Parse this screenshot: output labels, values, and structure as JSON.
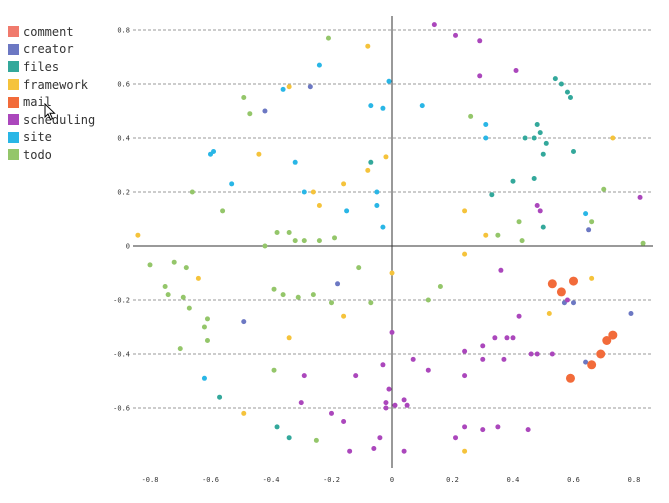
{
  "chart_data": {
    "type": "scatter",
    "title": "",
    "xlabel": "",
    "ylabel": "",
    "xlim": [
      -0.85,
      0.85
    ],
    "ylim": [
      -0.8,
      0.8
    ],
    "x_ticks": [
      -0.8,
      -0.6,
      -0.4,
      -0.2,
      0,
      0.2,
      0.4,
      0.6,
      0.8
    ],
    "x_tick_labels": [
      "-0.8",
      "-0.6",
      "-0.4",
      "-0.2",
      "0",
      "0.2",
      "0.4",
      "0.6",
      "0.8"
    ],
    "y_ticks": [
      0.8,
      0.6,
      0.4,
      0.2,
      0,
      -0.2,
      -0.4,
      -0.6
    ],
    "y_tick_labels": [
      "0.8",
      "0.6",
      "0.4",
      "0.2",
      "0",
      "-0.2",
      "-0.4",
      "-0.6"
    ],
    "grid": "horizontal-dashed",
    "legend_position": "top-left",
    "series": [
      {
        "name": "comment",
        "color": "#f07a6d",
        "points": []
      },
      {
        "name": "creator",
        "color": "#6c78c3",
        "points": [
          [
            -0.27,
            0.59
          ],
          [
            -0.42,
            0.5
          ],
          [
            -0.49,
            -0.28
          ],
          [
            -0.18,
            -0.14
          ],
          [
            0.65,
            0.06
          ],
          [
            0.57,
            -0.21
          ],
          [
            0.6,
            -0.21
          ],
          [
            0.79,
            -0.25
          ],
          [
            0.64,
            -0.43
          ]
        ]
      },
      {
        "name": "files",
        "color": "#33a89b",
        "points": [
          [
            0.54,
            0.62
          ],
          [
            0.56,
            0.6
          ],
          [
            0.58,
            0.57
          ],
          [
            0.59,
            0.55
          ],
          [
            0.48,
            0.45
          ],
          [
            0.49,
            0.42
          ],
          [
            0.47,
            0.4
          ],
          [
            0.44,
            0.4
          ],
          [
            0.51,
            0.38
          ],
          [
            0.5,
            0.34
          ],
          [
            0.6,
            0.35
          ],
          [
            0.47,
            0.25
          ],
          [
            0.4,
            0.24
          ],
          [
            0.33,
            0.19
          ],
          [
            0.5,
            0.07
          ],
          [
            -0.07,
            0.31
          ],
          [
            -0.57,
            -0.56
          ],
          [
            -0.38,
            -0.67
          ],
          [
            -0.34,
            -0.71
          ]
        ]
      },
      {
        "name": "framework",
        "color": "#f5c33b",
        "points": [
          [
            -0.08,
            0.74
          ],
          [
            -0.34,
            0.59
          ],
          [
            -0.44,
            0.34
          ],
          [
            -0.02,
            0.33
          ],
          [
            0.73,
            0.4
          ],
          [
            -0.08,
            0.28
          ],
          [
            -0.16,
            0.23
          ],
          [
            -0.26,
            0.2
          ],
          [
            -0.24,
            0.15
          ],
          [
            0.24,
            0.13
          ],
          [
            0.31,
            0.04
          ],
          [
            -0.84,
            0.04
          ],
          [
            -0.64,
            -0.12
          ],
          [
            0.24,
            -0.03
          ],
          [
            0.0,
            -0.1
          ],
          [
            0.66,
            -0.12
          ],
          [
            -0.16,
            -0.26
          ],
          [
            0.52,
            -0.25
          ],
          [
            -0.34,
            -0.34
          ],
          [
            -0.49,
            -0.62
          ],
          [
            0.24,
            -0.76
          ]
        ]
      },
      {
        "name": "mail",
        "color": "#f26b3a",
        "points": [
          [
            0.53,
            -0.14
          ],
          [
            0.56,
            -0.17
          ],
          [
            0.6,
            -0.13
          ],
          [
            0.73,
            -0.33
          ],
          [
            0.71,
            -0.35
          ],
          [
            0.69,
            -0.4
          ],
          [
            0.66,
            -0.44
          ],
          [
            0.59,
            -0.49
          ]
        ]
      },
      {
        "name": "scheduling",
        "color": "#ab47bc",
        "points": [
          [
            0.14,
            0.82
          ],
          [
            0.21,
            0.78
          ],
          [
            0.29,
            0.76
          ],
          [
            0.41,
            0.65
          ],
          [
            0.29,
            0.63
          ],
          [
            0.48,
            0.15
          ],
          [
            0.49,
            0.13
          ],
          [
            0.82,
            0.18
          ],
          [
            0.36,
            -0.09
          ],
          [
            0.42,
            -0.26
          ],
          [
            0.58,
            -0.2
          ],
          [
            -0.29,
            -0.48
          ],
          [
            0.34,
            -0.34
          ],
          [
            0.38,
            -0.34
          ],
          [
            0.4,
            -0.34
          ],
          [
            0.3,
            -0.37
          ],
          [
            0.24,
            -0.39
          ],
          [
            0.3,
            -0.42
          ],
          [
            0.37,
            -0.42
          ],
          [
            0.46,
            -0.4
          ],
          [
            0.48,
            -0.4
          ],
          [
            0.53,
            -0.4
          ],
          [
            0.07,
            -0.42
          ],
          [
            0.12,
            -0.46
          ],
          [
            0.24,
            -0.48
          ],
          [
            0.04,
            -0.57
          ],
          [
            -0.12,
            -0.48
          ],
          [
            -0.03,
            -0.44
          ],
          [
            -0.01,
            -0.53
          ],
          [
            -0.02,
            -0.58
          ],
          [
            -0.3,
            -0.58
          ],
          [
            -0.2,
            -0.62
          ],
          [
            -0.16,
            -0.65
          ],
          [
            -0.02,
            -0.6
          ],
          [
            0.01,
            -0.59
          ],
          [
            0.05,
            -0.59
          ],
          [
            0.21,
            -0.71
          ],
          [
            0.24,
            -0.67
          ],
          [
            0.3,
            -0.68
          ],
          [
            0.35,
            -0.67
          ],
          [
            0.45,
            -0.68
          ],
          [
            -0.04,
            -0.71
          ],
          [
            -0.14,
            -0.76
          ],
          [
            -0.06,
            -0.75
          ],
          [
            0.04,
            -0.76
          ],
          [
            0.0,
            -0.32
          ]
        ]
      },
      {
        "name": "site",
        "color": "#29b6e6",
        "points": [
          [
            -0.24,
            0.67
          ],
          [
            -0.36,
            0.58
          ],
          [
            -0.07,
            0.52
          ],
          [
            -0.03,
            0.51
          ],
          [
            0.1,
            0.52
          ],
          [
            -0.01,
            0.61
          ],
          [
            0.31,
            0.45
          ],
          [
            0.31,
            0.4
          ],
          [
            -0.59,
            0.35
          ],
          [
            -0.6,
            0.34
          ],
          [
            -0.32,
            0.31
          ],
          [
            -0.05,
            0.2
          ],
          [
            -0.29,
            0.2
          ],
          [
            -0.15,
            0.13
          ],
          [
            -0.05,
            0.15
          ],
          [
            -0.53,
            0.23
          ],
          [
            -0.03,
            0.07
          ],
          [
            0.64,
            0.12
          ],
          [
            -0.62,
            -0.49
          ]
        ]
      },
      {
        "name": "todo",
        "color": "#94c66a",
        "points": [
          [
            -0.21,
            0.77
          ],
          [
            -0.49,
            0.55
          ],
          [
            -0.47,
            0.49
          ],
          [
            0.26,
            0.48
          ],
          [
            -0.66,
            0.2
          ],
          [
            -0.56,
            0.13
          ],
          [
            0.7,
            0.21
          ],
          [
            0.42,
            0.09
          ],
          [
            0.66,
            0.09
          ],
          [
            0.83,
            0.01
          ],
          [
            -0.38,
            0.05
          ],
          [
            -0.34,
            0.05
          ],
          [
            -0.32,
            0.02
          ],
          [
            -0.29,
            0.02
          ],
          [
            -0.24,
            0.02
          ],
          [
            -0.19,
            0.03
          ],
          [
            -0.42,
            0.0
          ],
          [
            0.35,
            0.04
          ],
          [
            0.43,
            0.02
          ],
          [
            -0.8,
            -0.07
          ],
          [
            -0.72,
            -0.06
          ],
          [
            -0.68,
            -0.08
          ],
          [
            -0.75,
            -0.15
          ],
          [
            -0.74,
            -0.18
          ],
          [
            -0.69,
            -0.19
          ],
          [
            -0.67,
            -0.23
          ],
          [
            -0.61,
            -0.27
          ],
          [
            -0.39,
            -0.16
          ],
          [
            -0.36,
            -0.18
          ],
          [
            -0.31,
            -0.19
          ],
          [
            -0.26,
            -0.18
          ],
          [
            -0.2,
            -0.21
          ],
          [
            -0.11,
            -0.08
          ],
          [
            -0.07,
            -0.21
          ],
          [
            0.16,
            -0.15
          ],
          [
            0.12,
            -0.2
          ],
          [
            -0.61,
            -0.35
          ],
          [
            -0.62,
            -0.3
          ],
          [
            -0.7,
            -0.38
          ],
          [
            -0.39,
            -0.46
          ],
          [
            -0.25,
            -0.72
          ]
        ]
      }
    ]
  }
}
